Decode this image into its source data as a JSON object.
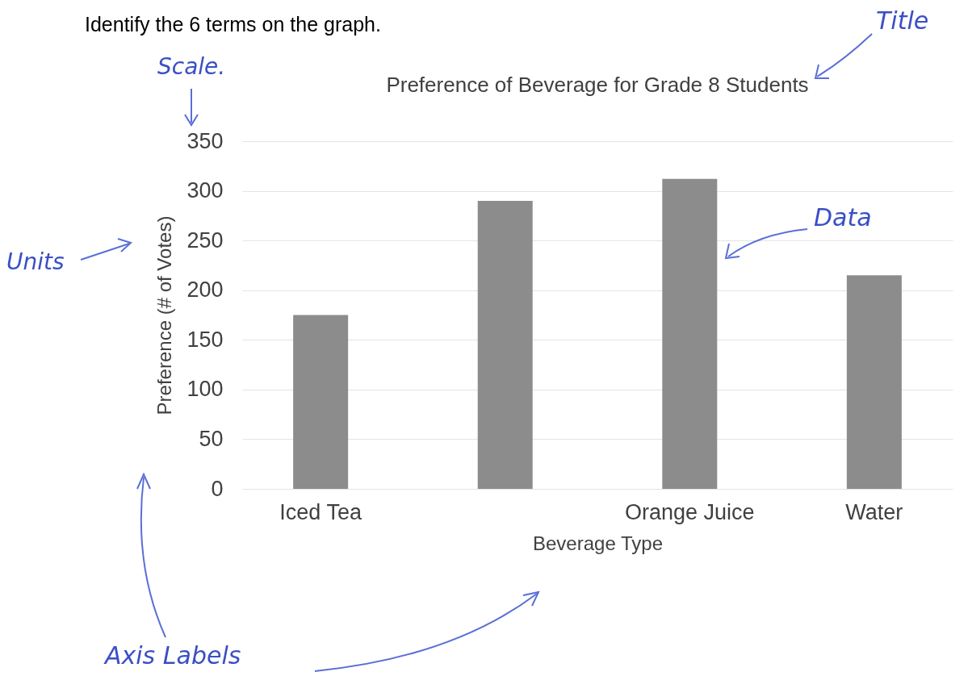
{
  "chart_data": {
    "type": "bar",
    "title": "Preference of Beverage for Grade 8 Students",
    "xlabel": "Beverage Type",
    "ylabel": "Preference (# of Votes)",
    "categories": [
      "Iced Tea",
      null,
      "Orange Juice",
      "Water"
    ],
    "values": [
      175,
      290,
      312,
      215
    ],
    "color": "#8c8c8c",
    "ylim": [
      0,
      350
    ],
    "yticks": [
      0,
      50,
      100,
      150,
      200,
      250,
      300,
      350
    ],
    "grid": "y",
    "annotations": [
      "Identify the 6 terms on the graph.",
      "Scale.",
      "Title",
      "Units",
      "Data",
      "Axis Labels"
    ]
  }
}
